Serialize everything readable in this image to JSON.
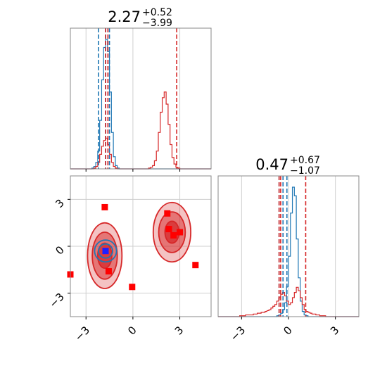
{
  "chart_data": [
    {
      "type": "histogram",
      "panel": "top-left",
      "title": {
        "value": "2.27",
        "sup": "+0.52",
        "sub": "−3.99"
      },
      "xlim": [
        -4,
        5
      ],
      "series": [
        {
          "name": "",
          "color": "#1f77b4",
          "quantiles": [
            -2.2,
            -1.75,
            -1.5
          ],
          "bins": {
            "start": -4,
            "width": 0.125,
            "counts": [
              0,
              0,
              0,
              0,
              0,
              0,
              0,
              0,
              0,
              0,
              0,
              1,
              3,
              8,
              22,
              60,
              110,
              150,
              160,
              145,
              95,
              45,
              15,
              4,
              1,
              0,
              0,
              0,
              0,
              0,
              0,
              0,
              0,
              0,
              0,
              0,
              0,
              0,
              0,
              0,
              0,
              0,
              0,
              0,
              0,
              0,
              0,
              0,
              0,
              0,
              0,
              0,
              0,
              0,
              0,
              0,
              0,
              0,
              0,
              0,
              0,
              0,
              0,
              0,
              0,
              0,
              0,
              0,
              0,
              0,
              0,
              0
            ]
          }
        },
        {
          "name": "",
          "color": "#d62728",
          "quantiles": [
            -1.75,
            -1.6,
            2.8
          ],
          "bins": {
            "start": -4,
            "width": 0.125,
            "counts": [
              0,
              0,
              0,
              0,
              0,
              0,
              0,
              0,
              0,
              0,
              0,
              0,
              1,
              3,
              8,
              18,
              28,
              35,
              38,
              30,
              18,
              8,
              3,
              1,
              0,
              0,
              0,
              0,
              0,
              0,
              0,
              0,
              0,
              0,
              0,
              0,
              0,
              0,
              0,
              0,
              1,
              2,
              4,
              10,
              22,
              45,
              70,
              88,
              95,
              80,
              55,
              30,
              14,
              6,
              2,
              1,
              0,
              0,
              0,
              0,
              0,
              0,
              0,
              0,
              0,
              0,
              0,
              0,
              0,
              0,
              0,
              0
            ]
          }
        }
      ],
      "ticks": [
        -3,
        0,
        3
      ],
      "grid": true
    },
    {
      "type": "scatter",
      "panel": "bottom-left",
      "xlim": [
        -4,
        5
      ],
      "ylim": [
        -4.5,
        4.5
      ],
      "xticks": [
        "−3",
        "0",
        "3"
      ],
      "yticks": [
        "−3",
        "0",
        "3"
      ],
      "grid": true,
      "contours": [
        {
          "color": "#d62728",
          "cx": -1.8,
          "cy": -0.6,
          "rx": [
            1.1,
            0.8,
            0.45
          ],
          "ry": [
            2.1,
            1.5,
            0.8
          ]
        },
        {
          "color": "#d62728",
          "cx": 2.5,
          "cy": 0.9,
          "rx": [
            1.2,
            0.85,
            0.45
          ],
          "ry": [
            1.9,
            1.3,
            0.7
          ]
        },
        {
          "color": "#1f77b4",
          "cx": -1.75,
          "cy": -0.3,
          "rx": [
            0.7,
            0.45
          ],
          "ry": [
            0.7,
            0.45
          ]
        }
      ],
      "points": [
        {
          "x": -1.8,
          "y": 2.5,
          "color": "#ff0000"
        },
        {
          "x": 2.2,
          "y": 2.1,
          "color": "#ff0000"
        },
        {
          "x": 2.3,
          "y": 1.1,
          "color": "#ff0000"
        },
        {
          "x": 2.6,
          "y": 0.7,
          "color": "#ff0000"
        },
        {
          "x": 3.0,
          "y": 0.9,
          "color": "#ff0000"
        },
        {
          "x": 4.0,
          "y": -1.2,
          "color": "#ff0000"
        },
        {
          "x": -1.55,
          "y": -1.6,
          "color": "#ff0000"
        },
        {
          "x": -0.05,
          "y": -2.6,
          "color": "#ff0000"
        },
        {
          "x": -4.0,
          "y": -1.8,
          "color": "#ff0000"
        },
        {
          "x": -1.75,
          "y": -0.3,
          "color": "#1f1fff"
        }
      ]
    },
    {
      "type": "histogram",
      "panel": "bottom-right",
      "title": {
        "value": "0.47",
        "sup": "+0.67",
        "sub": "−1.07"
      },
      "xlim": [
        -4.5,
        4.5
      ],
      "series": [
        {
          "name": "",
          "color": "#1f77b4",
          "quantiles": [
            -0.6,
            -0.35,
            -0.1
          ],
          "bins": {
            "start": -4.5,
            "width": 0.125,
            "counts": [
              0,
              0,
              0,
              0,
              0,
              0,
              0,
              0,
              0,
              0,
              0,
              0,
              0,
              0,
              0,
              0,
              0,
              0,
              0,
              0,
              0,
              0,
              0,
              0,
              0,
              0,
              0,
              0,
              0,
              0,
              1,
              2,
              4,
              8,
              16,
              35,
              70,
              120,
              150,
              140,
              90,
              45,
              18,
              6,
              2,
              1,
              0,
              0,
              0,
              0,
              0,
              0,
              0,
              0,
              0,
              0,
              0,
              0,
              0,
              0,
              0,
              0,
              0,
              0,
              0,
              0,
              0,
              0,
              0,
              0,
              0,
              0
            ]
          }
        },
        {
          "name": "",
          "color": "#d62728",
          "quantiles": [
            -0.6,
            -0.5,
            1.1
          ],
          "bins": {
            "start": -4.5,
            "width": 0.125,
            "counts": [
              0,
              0,
              0,
              0,
              0,
              0,
              0,
              0,
              0,
              0,
              0,
              1,
              1,
              1,
              2,
              2,
              2,
              2,
              3,
              3,
              4,
              4,
              5,
              5,
              6,
              7,
              8,
              10,
              12,
              14,
              18,
              22,
              26,
              28,
              24,
              18,
              14,
              16,
              22,
              28,
              34,
              30,
              22,
              14,
              8,
              6,
              5,
              4,
              3,
              3,
              2,
              2,
              1,
              1,
              1,
              0,
              0,
              0,
              0,
              0,
              0,
              0,
              0,
              0,
              0,
              0,
              0,
              0,
              0,
              0,
              0,
              0
            ]
          }
        }
      ],
      "xticks": [
        "−3",
        "0",
        "3"
      ],
      "grid": true
    }
  ]
}
